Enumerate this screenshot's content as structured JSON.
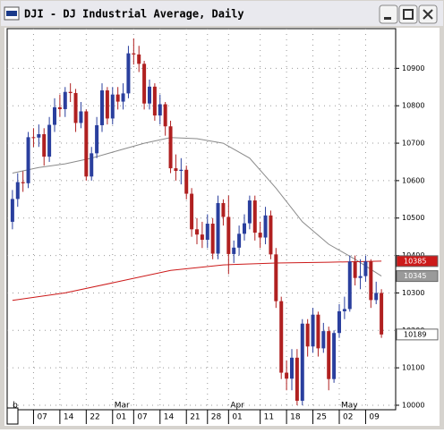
{
  "window": {
    "title": "DJI - DJ Industrial Average, Daily"
  },
  "chart_data": {
    "type": "candlestick",
    "up_color": "#2a3f9e",
    "down_color": "#b02020",
    "grid": true,
    "xlim": [
      -1,
      72.7
    ],
    "ylim": [
      9988,
      11006
    ],
    "yticks": [
      10000,
      10100,
      10200,
      10300,
      10400,
      10500,
      10600,
      10700,
      10800,
      10900
    ],
    "xticks": [
      {
        "value": 4,
        "label": "07"
      },
      {
        "value": 9,
        "label": "14"
      },
      {
        "value": 14,
        "label": "22"
      },
      {
        "value": 19,
        "label": "01"
      },
      {
        "value": 23,
        "label": "07"
      },
      {
        "value": 28,
        "label": "14"
      },
      {
        "value": 33,
        "label": "21"
      },
      {
        "value": 37,
        "label": "28"
      },
      {
        "value": 41,
        "label": "01"
      },
      {
        "value": 47,
        "label": "11"
      },
      {
        "value": 52,
        "label": "18"
      },
      {
        "value": 57,
        "label": "25"
      },
      {
        "value": 62,
        "label": "02"
      },
      {
        "value": 67,
        "label": "09"
      }
    ],
    "month_labels": [
      {
        "value": -0.3,
        "label": "b"
      },
      {
        "value": 19,
        "label": "Mar"
      },
      {
        "value": 41,
        "label": "Apr"
      },
      {
        "value": 62,
        "label": "May"
      }
    ],
    "open": [
      10490,
      10551,
      10596,
      10593,
      10716,
      10715,
      10724,
      10664,
      10749,
      10796,
      10791,
      10837,
      10834,
      10754,
      10785,
      10611,
      10673,
      10748,
      10841,
      10766,
      10830,
      10811,
      10833,
      10940,
      10937,
      10912,
      10806,
      10851,
      10774,
      10804,
      10745,
      10633,
      10626,
      10629,
      10565,
      10470,
      10456,
      10442,
      10485,
      10405,
      10540,
      10503,
      10404,
      10421,
      10458,
      10486,
      10547,
      10461,
      10448,
      10507,
      10403,
      10278,
      10087,
      10071,
      10127,
      10012,
      10218,
      10157,
      10242,
      10152,
      10198,
      10070,
      10193,
      10251,
      10257,
      10384,
      10340,
      10345,
      10384,
      10281,
      10300
    ],
    "high": [
      10575,
      10620,
      10625,
      10730,
      10740,
      10750,
      10740,
      10770,
      10820,
      10830,
      10850,
      10860,
      10845,
      10810,
      10790,
      10690,
      10770,
      10860,
      10850,
      10850,
      10850,
      10860,
      10960,
      10980,
      10960,
      10920,
      10870,
      10860,
      10830,
      10810,
      10760,
      10670,
      10660,
      10640,
      10580,
      10500,
      10490,
      10510,
      10500,
      10560,
      10550,
      10560,
      10440,
      10480,
      10510,
      10560,
      10560,
      10490,
      10530,
      10520,
      10420,
      10290,
      10120,
      10150,
      10150,
      10230,
      10230,
      10260,
      10250,
      10220,
      10210,
      10200,
      10270,
      10290,
      10400,
      10400,
      10390,
      10400,
      10390,
      10330,
      10310
    ],
    "low": [
      10470,
      10530,
      10570,
      10580,
      10690,
      10690,
      10640,
      10650,
      10730,
      10770,
      10770,
      10810,
      10730,
      10740,
      10600,
      10600,
      10660,
      10730,
      10750,
      10750,
      10790,
      10790,
      10820,
      10910,
      10890,
      10790,
      10790,
      10760,
      10750,
      10720,
      10620,
      10600,
      10590,
      10550,
      10450,
      10430,
      10420,
      10420,
      10390,
      10390,
      10480,
      10350,
      10380,
      10400,
      10440,
      10470,
      10440,
      10420,
      10430,
      10390,
      10260,
      10070,
      10040,
      10040,
      10000,
      10000,
      10130,
      10140,
      10130,
      10140,
      10040,
      10060,
      10180,
      10230,
      10250,
      10320,
      10310,
      10330,
      10260,
      10270,
      10180
    ],
    "close": [
      10551,
      10596,
      10593,
      10716,
      10715,
      10724,
      10664,
      10749,
      10796,
      10791,
      10837,
      10834,
      10754,
      10785,
      10611,
      10673,
      10748,
      10841,
      10766,
      10830,
      10811,
      10833,
      10940,
      10937,
      10912,
      10806,
      10851,
      10774,
      10804,
      10745,
      10633,
      10626,
      10629,
      10565,
      10470,
      10456,
      10442,
      10485,
      10405,
      10540,
      10503,
      10404,
      10421,
      10458,
      10486,
      10547,
      10461,
      10448,
      10507,
      10403,
      10278,
      10087,
      10071,
      10127,
      10012,
      10218,
      10157,
      10242,
      10152,
      10198,
      10070,
      10193,
      10251,
      10257,
      10384,
      10340,
      10345,
      10384,
      10281,
      10300,
      10189
    ],
    "overlays": [
      {
        "color": "#8a8a8a",
        "x": [
          0,
          5,
          10,
          15,
          20,
          25,
          30,
          35,
          40,
          45,
          50,
          55,
          60,
          65,
          70
        ],
        "values": [
          10620,
          10635,
          10645,
          10660,
          10680,
          10700,
          10715,
          10712,
          10700,
          10660,
          10580,
          10490,
          10430,
          10390,
          10345
        ]
      },
      {
        "color": "#cc1a1a",
        "x": [
          0,
          10,
          20,
          30,
          40,
          50,
          60,
          70
        ],
        "values": [
          10280,
          10300,
          10330,
          10360,
          10375,
          10380,
          10382,
          10385
        ]
      }
    ],
    "price_flags": [
      {
        "value": 10385,
        "color": "#cc1a1a",
        "text_color": "#ffffff"
      },
      {
        "value": 10345,
        "color": "#9a9a9a",
        "text_color": "#ffffff"
      },
      {
        "value": 10189,
        "color": "#ffffff",
        "text_color": "#000000"
      }
    ]
  }
}
